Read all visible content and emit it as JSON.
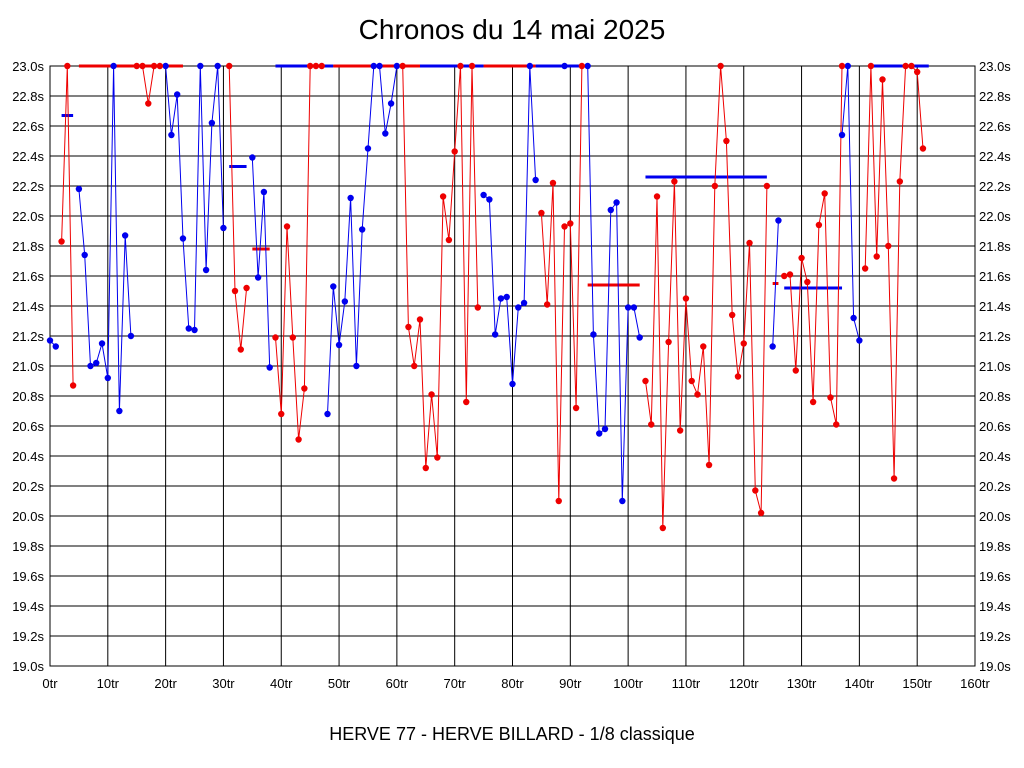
{
  "chart_data": {
    "type": "line",
    "title": "Chronos du 14 mai 2025",
    "xlabel": "HERVE 77 - HERVE BILLARD - 1/8 classique",
    "ylabel": "",
    "xlim": [
      0,
      160
    ],
    "ylim": [
      19.0,
      23.0
    ],
    "x_ticks": [
      0,
      10,
      20,
      30,
      40,
      50,
      60,
      70,
      80,
      90,
      100,
      110,
      120,
      130,
      140,
      150,
      160
    ],
    "x_tick_labels": [
      "0tr",
      "10tr",
      "20tr",
      "30tr",
      "40tr",
      "50tr",
      "60tr",
      "70tr",
      "80tr",
      "90tr",
      "100tr",
      "110tr",
      "120tr",
      "130tr",
      "140tr",
      "150tr",
      "160tr"
    ],
    "y_ticks": [
      19.0,
      19.2,
      19.4,
      19.6,
      19.8,
      20.0,
      20.2,
      20.4,
      20.6,
      20.8,
      21.0,
      21.2,
      21.4,
      21.6,
      21.8,
      22.0,
      22.2,
      22.4,
      22.6,
      22.8,
      23.0
    ],
    "y_tick_labels": [
      "19.0s",
      "19.2s",
      "19.4s",
      "19.6s",
      "19.8s",
      "20.0s",
      "20.2s",
      "20.4s",
      "20.6s",
      "20.8s",
      "21.0s",
      "21.2s",
      "21.4s",
      "21.6s",
      "21.8s",
      "22.0s",
      "22.2s",
      "22.4s",
      "22.6s",
      "22.8s",
      "23.0s"
    ],
    "grid": true,
    "colors": {
      "blue": "#0000ee",
      "red": "#ee0000",
      "grid": "#000000"
    },
    "series": [
      {
        "color": "#0000ee",
        "segments": [
          [
            [
              0,
              21.17
            ],
            [
              1,
              21.13
            ]
          ],
          [
            [
              5,
              22.18
            ],
            [
              6,
              21.74
            ],
            [
              7,
              21.0
            ],
            [
              8,
              21.02
            ],
            [
              9,
              21.15
            ],
            [
              10,
              20.92
            ],
            [
              11,
              23.0
            ],
            [
              12,
              20.7
            ],
            [
              13,
              21.87
            ],
            [
              14,
              21.2
            ]
          ],
          [
            [
              20,
              23.0
            ],
            [
              21,
              22.54
            ],
            [
              22,
              22.81
            ],
            [
              23,
              21.85
            ],
            [
              24,
              21.25
            ],
            [
              25,
              21.24
            ],
            [
              26,
              23.0
            ],
            [
              27,
              21.64
            ],
            [
              28,
              22.62
            ],
            [
              29,
              23.0
            ],
            [
              30,
              21.92
            ]
          ],
          [
            [
              35,
              22.39
            ],
            [
              36,
              21.59
            ],
            [
              37,
              22.16
            ],
            [
              38,
              20.99
            ]
          ],
          [
            [
              48,
              20.68
            ],
            [
              49,
              21.53
            ],
            [
              50,
              21.14
            ],
            [
              51,
              21.43
            ],
            [
              52,
              22.12
            ],
            [
              53,
              21.0
            ],
            [
              54,
              21.91
            ],
            [
              55,
              22.45
            ],
            [
              56,
              23.0
            ],
            [
              57,
              23.0
            ],
            [
              58,
              22.55
            ],
            [
              59,
              22.75
            ],
            [
              60,
              23.0
            ]
          ],
          [
            [
              75,
              22.14
            ],
            [
              76,
              22.11
            ],
            [
              77,
              21.21
            ],
            [
              78,
              21.45
            ],
            [
              79,
              21.46
            ],
            [
              80,
              20.88
            ],
            [
              81,
              21.39
            ],
            [
              82,
              21.42
            ],
            [
              83,
              23.0
            ],
            [
              84,
              22.24
            ]
          ],
          [
            [
              89,
              23.0
            ],
            [
              93,
              23.0
            ],
            [
              94,
              21.21
            ],
            [
              95,
              20.55
            ],
            [
              96,
              20.58
            ],
            [
              97,
              22.04
            ],
            [
              98,
              22.09
            ],
            [
              99,
              20.1
            ],
            [
              100,
              21.39
            ],
            [
              101,
              21.39
            ],
            [
              102,
              21.19
            ]
          ],
          [
            [
              125,
              21.13
            ],
            [
              126,
              21.97
            ]
          ],
          [
            [
              137,
              22.54
            ],
            [
              138,
              23.0
            ],
            [
              139,
              21.32
            ],
            [
              140,
              21.17
            ]
          ]
        ]
      },
      {
        "color": "#ee0000",
        "segments": [
          [
            [
              2,
              21.83
            ],
            [
              3,
              23.0
            ],
            [
              4,
              20.87
            ]
          ],
          [
            [
              15,
              23.0
            ],
            [
              16,
              23.0
            ],
            [
              17,
              22.75
            ],
            [
              18,
              23.0
            ],
            [
              19,
              23.0
            ]
          ],
          [
            [
              31,
              23.0
            ],
            [
              32,
              21.5
            ],
            [
              33,
              21.11
            ],
            [
              34,
              21.52
            ]
          ],
          [
            [
              39,
              21.19
            ],
            [
              40,
              20.68
            ],
            [
              41,
              21.93
            ],
            [
              42,
              21.19
            ],
            [
              43,
              20.51
            ],
            [
              44,
              20.85
            ],
            [
              45,
              23.0
            ],
            [
              46,
              23.0
            ],
            [
              47,
              23.0
            ]
          ],
          [
            [
              61,
              23.0
            ],
            [
              62,
              21.26
            ],
            [
              63,
              21.0
            ],
            [
              64,
              21.31
            ],
            [
              65,
              20.32
            ],
            [
              66,
              20.81
            ],
            [
              67,
              20.39
            ],
            [
              68,
              22.13
            ],
            [
              69,
              21.84
            ],
            [
              70,
              22.43
            ],
            [
              71,
              23.0
            ],
            [
              72,
              20.76
            ],
            [
              73,
              23.0
            ],
            [
              74,
              21.39
            ]
          ],
          [
            [
              85,
              22.02
            ],
            [
              86,
              21.41
            ],
            [
              87,
              22.22
            ],
            [
              88,
              20.1
            ],
            [
              89,
              21.93
            ],
            [
              90,
              21.95
            ],
            [
              91,
              20.72
            ],
            [
              92,
              23.0
            ]
          ],
          [
            [
              103,
              20.9
            ],
            [
              104,
              20.61
            ],
            [
              105,
              22.13
            ],
            [
              106,
              19.92
            ],
            [
              107,
              21.16
            ],
            [
              108,
              22.23
            ],
            [
              109,
              20.57
            ],
            [
              110,
              21.45
            ],
            [
              111,
              20.9
            ],
            [
              112,
              20.81
            ],
            [
              113,
              21.13
            ],
            [
              114,
              20.34
            ],
            [
              115,
              22.2
            ],
            [
              116,
              23.0
            ],
            [
              117,
              22.5
            ],
            [
              118,
              21.34
            ],
            [
              119,
              20.93
            ],
            [
              120,
              21.15
            ],
            [
              121,
              21.82
            ],
            [
              122,
              20.17
            ],
            [
              123,
              20.02
            ],
            [
              124,
              22.2
            ]
          ],
          [
            [
              127,
              21.6
            ],
            [
              128,
              21.61
            ],
            [
              129,
              20.97
            ],
            [
              130,
              21.72
            ],
            [
              131,
              21.56
            ],
            [
              132,
              20.76
            ],
            [
              133,
              21.94
            ],
            [
              134,
              22.15
            ],
            [
              135,
              20.79
            ],
            [
              136,
              20.61
            ],
            [
              137,
              23.0
            ]
          ],
          [
            [
              141,
              21.65
            ],
            [
              142,
              23.0
            ],
            [
              143,
              21.73
            ],
            [
              144,
              22.91
            ],
            [
              145,
              21.8
            ],
            [
              146,
              20.25
            ],
            [
              147,
              22.23
            ],
            [
              148,
              23.0
            ],
            [
              149,
              23.0
            ],
            [
              150,
              22.96
            ],
            [
              151,
              22.45
            ]
          ]
        ]
      }
    ],
    "averages": [
      {
        "color": "#0000ee",
        "y": 22.67,
        "x": [
          2,
          4
        ]
      },
      {
        "color": "#ee0000",
        "y": 23.0,
        "x": [
          5,
          23
        ]
      },
      {
        "color": "#0000ee",
        "y": 22.33,
        "x": [
          31,
          34
        ]
      },
      {
        "color": "#ee0000",
        "y": 21.78,
        "x": [
          35,
          38
        ]
      },
      {
        "color": "#0000ee",
        "y": 23.0,
        "x": [
          39,
          49
        ]
      },
      {
        "color": "#ee0000",
        "y": 23.0,
        "x": [
          49,
          64
        ]
      },
      {
        "color": "#0000ee",
        "y": 23.0,
        "x": [
          64,
          75
        ]
      },
      {
        "color": "#ee0000",
        "y": 23.0,
        "x": [
          75,
          84
        ]
      },
      {
        "color": "#0000ee",
        "y": 23.0,
        "x": [
          84,
          93
        ]
      },
      {
        "color": "#ee0000",
        "y": 21.54,
        "x": [
          93,
          102
        ]
      },
      {
        "color": "#0000ee",
        "y": 22.26,
        "x": [
          103,
          124
        ]
      },
      {
        "color": "#ee0000",
        "y": 21.55,
        "x": [
          125,
          126
        ]
      },
      {
        "color": "#0000ee",
        "y": 21.52,
        "x": [
          127,
          137
        ]
      },
      {
        "color": "#0000ee",
        "y": 23.0,
        "x": [
          142,
          152
        ]
      }
    ]
  }
}
